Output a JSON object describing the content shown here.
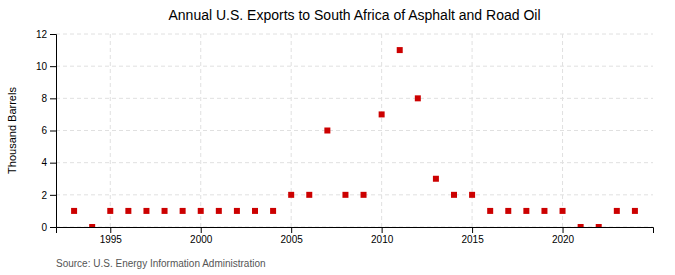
{
  "chart_data": {
    "type": "scatter",
    "title": "Annual U.S. Exports to South Africa of Asphalt and Road Oil",
    "ylabel": "Thousand Barrels",
    "annotations": [
      "Source: U.S. Energy Information Administration"
    ],
    "x": [
      1993,
      1994,
      1995,
      1996,
      1997,
      1998,
      1999,
      2000,
      2001,
      2002,
      2003,
      2004,
      2005,
      2006,
      2007,
      2008,
      2009,
      2010,
      2011,
      2012,
      2013,
      2014,
      2015,
      2016,
      2017,
      2018,
      2019,
      2020,
      2021,
      2022,
      2023,
      2024
    ],
    "values": [
      1,
      0,
      1,
      1,
      1,
      1,
      1,
      1,
      1,
      1,
      1,
      1,
      2,
      2,
      6,
      2,
      2,
      7,
      11,
      8,
      3,
      2,
      2,
      1,
      1,
      1,
      1,
      1,
      0,
      0,
      1,
      1
    ],
    "color": "#cc0000",
    "marker": "square",
    "xlim": [
      1992,
      2025
    ],
    "ylim": [
      0,
      12
    ],
    "yticks": [
      0,
      2,
      4,
      6,
      8,
      10,
      12
    ],
    "xticks": [
      1995,
      2000,
      2005,
      2010,
      2015,
      2020
    ],
    "grid": true
  }
}
